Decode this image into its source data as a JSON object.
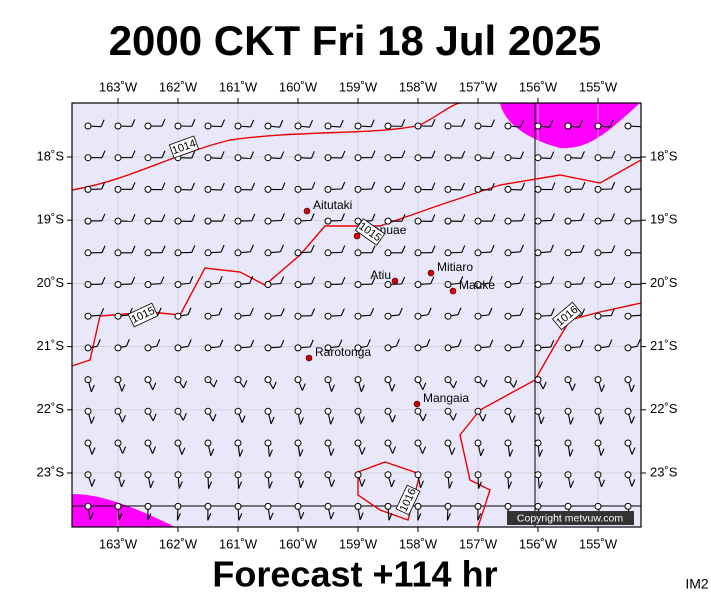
{
  "header": {
    "title": "2000 CKT Fri 18 Jul 2025"
  },
  "map": {
    "lon_labels": [
      "163˚W",
      "162˚W",
      "161˚W",
      "160˚W",
      "159˚W",
      "158˚W",
      "157˚W",
      "156˚W",
      "155˚W"
    ],
    "lat_labels": [
      "18˚S",
      "19˚S",
      "20˚S",
      "21˚S",
      "22˚S",
      "23˚S"
    ],
    "places": [
      {
        "label": "Aitutaki"
      },
      {
        "label": "Manuae"
      },
      {
        "label": "Atiu"
      },
      {
        "label": "Mitiaro"
      },
      {
        "label": "Mauke"
      },
      {
        "label": "Rarotonga"
      },
      {
        "label": "Mangaia"
      }
    ],
    "isobar_labels": [
      "1014",
      "1015",
      "1015",
      "1016",
      "1016"
    ],
    "copyright": "Copyright metvuw.com"
  },
  "footer": {
    "forecast": "Forecast +114 hr",
    "code": "IM2"
  }
}
